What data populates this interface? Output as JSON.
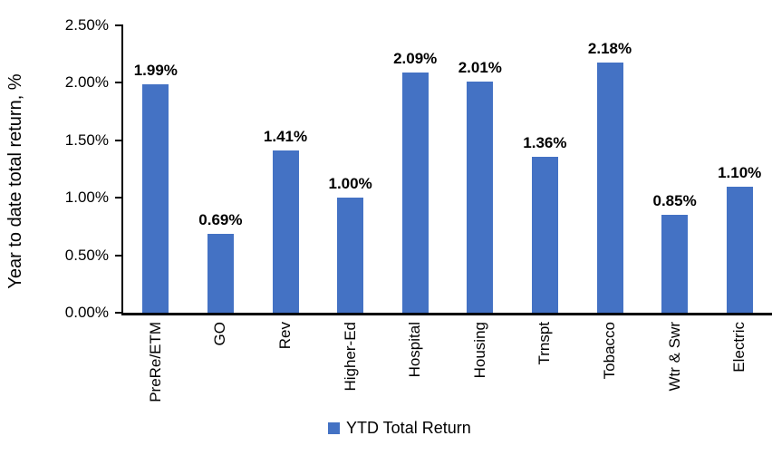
{
  "chart_data": {
    "type": "bar",
    "title": "",
    "xlabel": "",
    "ylabel": "Year to date total return, %",
    "categories": [
      "PreRe/ETM",
      "GO",
      "Rev",
      "Higher-Ed",
      "Hospital",
      "Housing",
      "Trnspt",
      "Tobacco",
      "Wtr & Swr",
      "Electric"
    ],
    "values": [
      1.99,
      0.69,
      1.41,
      1.0,
      2.09,
      2.01,
      1.36,
      2.18,
      0.85,
      1.1
    ],
    "data_labels": [
      "1.99%",
      "0.69%",
      "1.41%",
      "1.00%",
      "2.09%",
      "2.01%",
      "1.36%",
      "2.18%",
      "0.85%",
      "1.10%"
    ],
    "y_ticks": [
      "0.00%",
      "0.50%",
      "1.00%",
      "1.50%",
      "2.00%",
      "2.50%"
    ],
    "ylim": [
      0,
      2.5
    ],
    "grid": false,
    "legend_position": "bottom",
    "legend": [
      {
        "label": "YTD Total Return",
        "color": "#4472C4"
      }
    ],
    "bar_color": "#4472C4",
    "axis_color": "#000000",
    "text_color": "#000000"
  }
}
